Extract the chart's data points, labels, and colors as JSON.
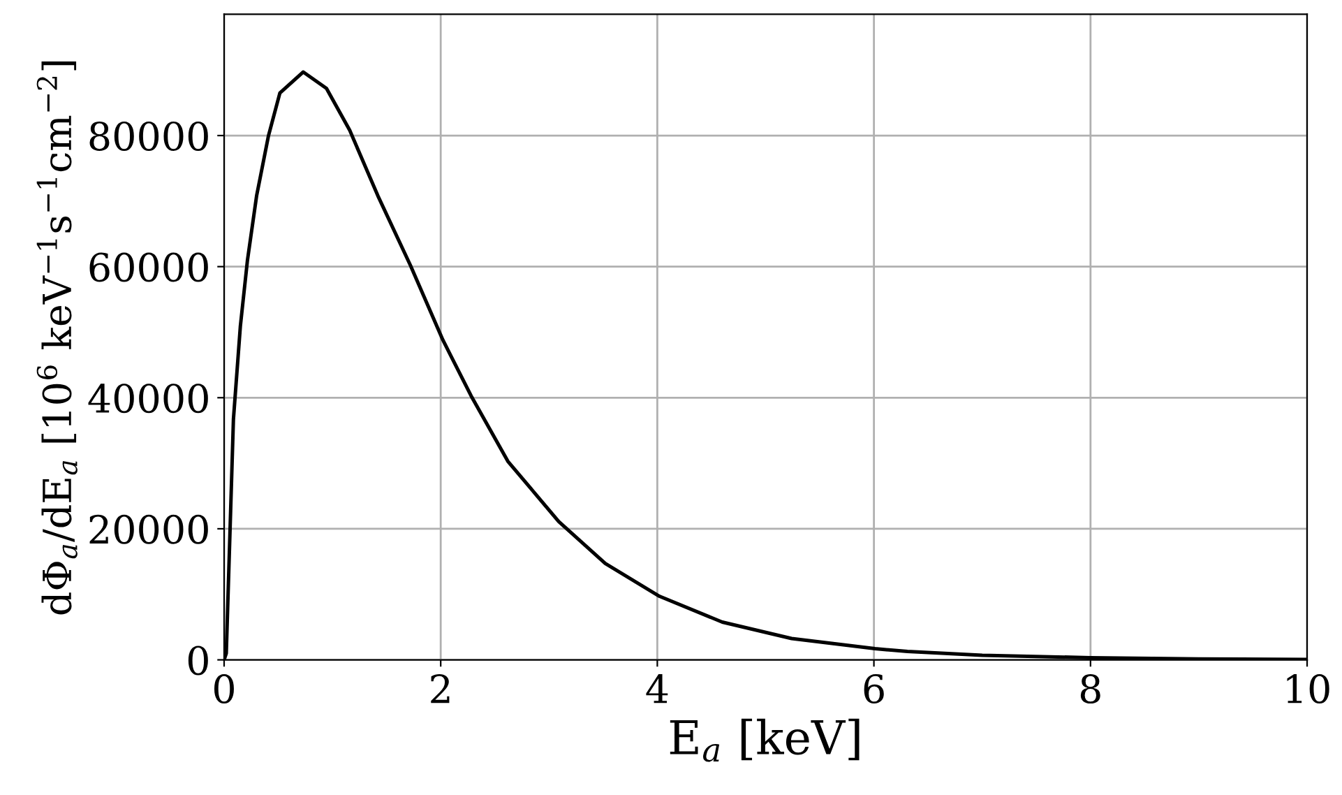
{
  "chart_data": {
    "type": "line",
    "xlabel": "E$_{a}$ [keV]",
    "ylabel": "dΦ$_{a}$/dE$_{a}$ [10$^{6}$ keV$^{−1}$s$^{−1}$cm$^{−2}$]",
    "series": [
      {
        "color": "#000000",
        "x": [
          0,
          0.02,
          0.086,
          0.15,
          0.215,
          0.3,
          0.41,
          0.515,
          0.73,
          0.945,
          1.16,
          1.42,
          1.72,
          2.02,
          2.28,
          2.62,
          3.09,
          3.52,
          4.02,
          4.6,
          5.24,
          6.01,
          6.31,
          7,
          8,
          9,
          10
        ],
        "values": [
          0,
          1000,
          36700,
          50900,
          60900,
          70800,
          80000,
          86500,
          89700,
          87200,
          80800,
          70800,
          60200,
          48800,
          40300,
          30300,
          21100,
          14700,
          9700,
          5760,
          3260,
          1700,
          1280,
          700,
          330,
          150,
          60
        ]
      }
    ],
    "xlim": [
      0,
      10
    ],
    "ylim": [
      0,
      98500
    ],
    "xticks": [
      0,
      2,
      4,
      6,
      8,
      10
    ],
    "yticks": [
      0,
      20000,
      40000,
      60000,
      80000
    ],
    "grid": true,
    "marker": "none",
    "line_style": "solid"
  }
}
